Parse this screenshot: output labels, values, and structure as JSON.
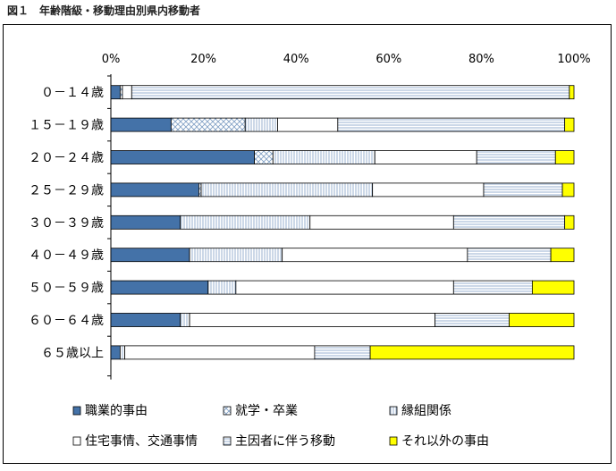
{
  "figure_title": "図１　年齢階級・移動理由別県内移動者",
  "chart_data": {
    "type": "bar",
    "orientation": "horizontal",
    "stacked_percent": true,
    "title": "",
    "xlim": [
      0,
      100
    ],
    "x_ticks": [
      "0%",
      "20%",
      "40%",
      "60%",
      "80%",
      "100%"
    ],
    "grid": false,
    "legend_position": "bottom",
    "categories": [
      "０－１４歳",
      "１５－１９歳",
      "２０－２４歳",
      "２５－２９歳",
      "３０－３９歳",
      "４０－４９歳",
      "５０－５９歳",
      "６０－６４歳",
      "６５歳以上"
    ],
    "series": [
      {
        "name": "職業的事由",
        "color": "#4472a8",
        "pattern": "solid",
        "values": [
          2,
          13,
          31,
          19,
          15,
          17,
          21,
          15,
          2
        ]
      },
      {
        "name": "就学・卒業",
        "color": "#a8c4e0",
        "pattern": "crosshatch",
        "values": [
          0.5,
          16,
          4,
          0.5,
          0,
          0,
          0,
          0,
          0
        ]
      },
      {
        "name": "縁組関係",
        "color": "#a8c4e0",
        "pattern": "vertical",
        "values": [
          0,
          7,
          22,
          37,
          28,
          20,
          6,
          2,
          1
        ]
      },
      {
        "name": "住宅事情、交通事情",
        "color": "#ffffff",
        "pattern": "blank",
        "values": [
          2,
          13,
          22,
          24,
          31,
          40,
          47,
          53,
          41
        ]
      },
      {
        "name": "主因者に伴う移動",
        "color": "#a8c4e0",
        "pattern": "horizontal",
        "values": [
          94.5,
          49,
          17,
          17,
          24,
          18,
          17,
          16,
          12
        ]
      },
      {
        "name": "それ以外の事由",
        "color": "#ffff00",
        "pattern": "solid",
        "values": [
          1,
          2,
          4,
          2.5,
          2,
          5,
          9,
          14,
          44
        ]
      }
    ]
  }
}
